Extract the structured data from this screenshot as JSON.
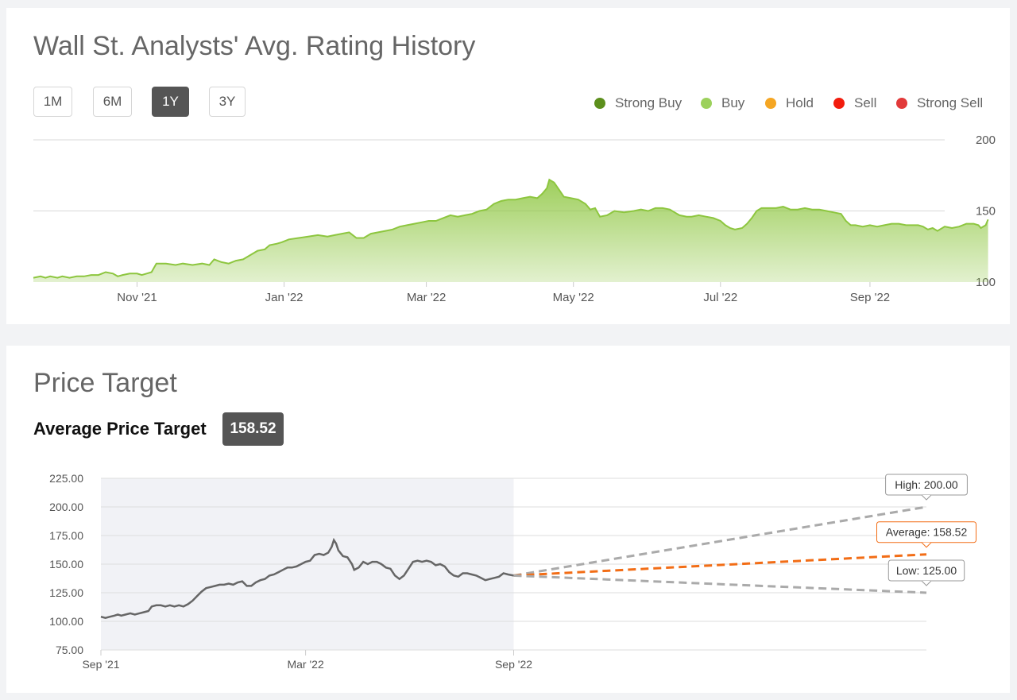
{
  "rating_card": {
    "title": "Wall St. Analysts' Avg. Rating History",
    "ranges": [
      "1M",
      "6M",
      "1Y",
      "3Y"
    ],
    "active_range": "1Y",
    "legend": [
      {
        "label": "Strong Buy",
        "color": "#5c8f1c"
      },
      {
        "label": "Buy",
        "color": "#9cd15c"
      },
      {
        "label": "Hold",
        "color": "#f5a623"
      },
      {
        "label": "Sell",
        "color": "#f21c0d"
      },
      {
        "label": "Strong Sell",
        "color": "#e23a3a"
      }
    ]
  },
  "target_card": {
    "title": "Price Target",
    "average_label": "Average Price Target",
    "average_value": "158.52"
  },
  "chart_data": [
    {
      "type": "area",
      "title": "Wall St. Analysts' Avg. Rating History",
      "series_color": "#8dc63f",
      "y_ticks": [
        "200",
        "150",
        "100"
      ],
      "ylim": [
        100,
        200
      ],
      "grid": true,
      "x_tick_labels": [
        "Nov '21",
        "Jan '22",
        "Mar '22",
        "May '22",
        "Jul '22",
        "Sep '22"
      ],
      "x_tick_days": [
        43,
        104,
        163,
        224,
        285,
        347
      ],
      "x_range_days": [
        0,
        378
      ],
      "points": [
        [
          0,
          103
        ],
        [
          3,
          104
        ],
        [
          5,
          103
        ],
        [
          7,
          104
        ],
        [
          10,
          103
        ],
        [
          12,
          104
        ],
        [
          15,
          103
        ],
        [
          18,
          104
        ],
        [
          21,
          104
        ],
        [
          24,
          105
        ],
        [
          27,
          105
        ],
        [
          30,
          107
        ],
        [
          33,
          106
        ],
        [
          35,
          104
        ],
        [
          37,
          105
        ],
        [
          40,
          106
        ],
        [
          43,
          106
        ],
        [
          45,
          105
        ],
        [
          47,
          106
        ],
        [
          49,
          107
        ],
        [
          51,
          113
        ],
        [
          55,
          113
        ],
        [
          59,
          112
        ],
        [
          62,
          113
        ],
        [
          66,
          112
        ],
        [
          70,
          113
        ],
        [
          73,
          112
        ],
        [
          75,
          116
        ],
        [
          78,
          114
        ],
        [
          81,
          113
        ],
        [
          84,
          115
        ],
        [
          87,
          116
        ],
        [
          90,
          119
        ],
        [
          93,
          122
        ],
        [
          96,
          123
        ],
        [
          98,
          126
        ],
        [
          101,
          127
        ],
        [
          103,
          128
        ],
        [
          106,
          130
        ],
        [
          110,
          131
        ],
        [
          114,
          132
        ],
        [
          118,
          133
        ],
        [
          122,
          132
        ],
        [
          125,
          133
        ],
        [
          128,
          134
        ],
        [
          131,
          135
        ],
        [
          134,
          131
        ],
        [
          137,
          131
        ],
        [
          140,
          134
        ],
        [
          143,
          135
        ],
        [
          146,
          136
        ],
        [
          149,
          137
        ],
        [
          152,
          139
        ],
        [
          155,
          140
        ],
        [
          158,
          141
        ],
        [
          161,
          142
        ],
        [
          164,
          143
        ],
        [
          167,
          143
        ],
        [
          170,
          145
        ],
        [
          173,
          147
        ],
        [
          176,
          146
        ],
        [
          179,
          147
        ],
        [
          182,
          148
        ],
        [
          185,
          150
        ],
        [
          188,
          151
        ],
        [
          191,
          155
        ],
        [
          194,
          157
        ],
        [
          197,
          158
        ],
        [
          200,
          158
        ],
        [
          203,
          159
        ],
        [
          206,
          160
        ],
        [
          209,
          159
        ],
        [
          211,
          162
        ],
        [
          213,
          166
        ],
        [
          214,
          172
        ],
        [
          216,
          170
        ],
        [
          218,
          165
        ],
        [
          220,
          160
        ],
        [
          223,
          159
        ],
        [
          226,
          158
        ],
        [
          229,
          155
        ],
        [
          231,
          151
        ],
        [
          233,
          152
        ],
        [
          235,
          146
        ],
        [
          238,
          147
        ],
        [
          241,
          150
        ],
        [
          245,
          149
        ],
        [
          249,
          150
        ],
        [
          252,
          151
        ],
        [
          255,
          150
        ],
        [
          258,
          152
        ],
        [
          261,
          152
        ],
        [
          264,
          151
        ],
        [
          266,
          149
        ],
        [
          268,
          147
        ],
        [
          271,
          146
        ],
        [
          273,
          146
        ],
        [
          276,
          147
        ],
        [
          279,
          146
        ],
        [
          282,
          145
        ],
        [
          285,
          143
        ],
        [
          287,
          140
        ],
        [
          289,
          138
        ],
        [
          291,
          137
        ],
        [
          294,
          138
        ],
        [
          296,
          141
        ],
        [
          298,
          145
        ],
        [
          300,
          150
        ],
        [
          302,
          152
        ],
        [
          305,
          152
        ],
        [
          308,
          152
        ],
        [
          311,
          153
        ],
        [
          314,
          151
        ],
        [
          317,
          151
        ],
        [
          320,
          152
        ],
        [
          323,
          151
        ],
        [
          326,
          151
        ],
        [
          329,
          150
        ],
        [
          332,
          149
        ],
        [
          335,
          148
        ],
        [
          337,
          143
        ],
        [
          339,
          140
        ],
        [
          341,
          140
        ],
        [
          344,
          139
        ],
        [
          347,
          140
        ],
        [
          350,
          139
        ],
        [
          353,
          140
        ],
        [
          356,
          141
        ],
        [
          359,
          141
        ],
        [
          362,
          140
        ],
        [
          365,
          140
        ],
        [
          367,
          140
        ],
        [
          369,
          139
        ],
        [
          371,
          137
        ],
        [
          373,
          138
        ],
        [
          375,
          136
        ],
        [
          378,
          139
        ],
        [
          381,
          138
        ],
        [
          384,
          139
        ],
        [
          387,
          141
        ],
        [
          390,
          141
        ],
        [
          392,
          140
        ],
        [
          393,
          138
        ],
        [
          395,
          140
        ],
        [
          396,
          144
        ]
      ]
    },
    {
      "type": "line",
      "title": "Price Target",
      "y_ticks": [
        "225.00",
        "200.00",
        "175.00",
        "150.00",
        "125.00",
        "100.00",
        "75.00"
      ],
      "ylim": [
        75,
        225
      ],
      "grid": true,
      "x_tick_labels": [
        "Sep '21",
        "Mar '22",
        "Sep '22"
      ],
      "x_tick_days": [
        0,
        181,
        365
      ],
      "x_range_days": [
        0,
        730
      ],
      "shaded_region_days": [
        0,
        365
      ],
      "price_color": "#666666",
      "price_points": [
        [
          0,
          104
        ],
        [
          4,
          103
        ],
        [
          8,
          104
        ],
        [
          12,
          105
        ],
        [
          15,
          106
        ],
        [
          18,
          105
        ],
        [
          22,
          106
        ],
        [
          26,
          107
        ],
        [
          30,
          106
        ],
        [
          34,
          107
        ],
        [
          38,
          108
        ],
        [
          42,
          109
        ],
        [
          45,
          113
        ],
        [
          49,
          114
        ],
        [
          53,
          114
        ],
        [
          57,
          113
        ],
        [
          61,
          114
        ],
        [
          65,
          113
        ],
        [
          69,
          114
        ],
        [
          73,
          113
        ],
        [
          77,
          115
        ],
        [
          81,
          118
        ],
        [
          85,
          122
        ],
        [
          89,
          126
        ],
        [
          93,
          129
        ],
        [
          97,
          130
        ],
        [
          101,
          131
        ],
        [
          105,
          132
        ],
        [
          109,
          132
        ],
        [
          113,
          133
        ],
        [
          117,
          132
        ],
        [
          121,
          134
        ],
        [
          125,
          135
        ],
        [
          129,
          131
        ],
        [
          133,
          131
        ],
        [
          137,
          134
        ],
        [
          141,
          136
        ],
        [
          145,
          137
        ],
        [
          149,
          140
        ],
        [
          153,
          141
        ],
        [
          157,
          143
        ],
        [
          161,
          145
        ],
        [
          165,
          147
        ],
        [
          169,
          147
        ],
        [
          173,
          148
        ],
        [
          177,
          150
        ],
        [
          181,
          152
        ],
        [
          185,
          153
        ],
        [
          189,
          158
        ],
        [
          193,
          159
        ],
        [
          197,
          158
        ],
        [
          201,
          160
        ],
        [
          204,
          165
        ],
        [
          206,
          171
        ],
        [
          208,
          168
        ],
        [
          210,
          162
        ],
        [
          214,
          157
        ],
        [
          218,
          156
        ],
        [
          222,
          150
        ],
        [
          224,
          145
        ],
        [
          228,
          147
        ],
        [
          232,
          152
        ],
        [
          236,
          150
        ],
        [
          240,
          152
        ],
        [
          244,
          152
        ],
        [
          248,
          150
        ],
        [
          252,
          147
        ],
        [
          256,
          146
        ],
        [
          260,
          140
        ],
        [
          264,
          137
        ],
        [
          268,
          140
        ],
        [
          272,
          146
        ],
        [
          276,
          152
        ],
        [
          280,
          153
        ],
        [
          284,
          152
        ],
        [
          288,
          153
        ],
        [
          292,
          152
        ],
        [
          296,
          149
        ],
        [
          300,
          150
        ],
        [
          304,
          148
        ],
        [
          308,
          143
        ],
        [
          312,
          140
        ],
        [
          316,
          139
        ],
        [
          320,
          142
        ],
        [
          324,
          142
        ],
        [
          328,
          141
        ],
        [
          332,
          140
        ],
        [
          336,
          138
        ],
        [
          340,
          136
        ],
        [
          344,
          137
        ],
        [
          348,
          138
        ],
        [
          352,
          139
        ],
        [
          356,
          142
        ],
        [
          360,
          141
        ],
        [
          365,
          140
        ]
      ],
      "forecast": [
        {
          "label": "High: 200.00",
          "value": 200.0,
          "color": "#aaaaaa",
          "start_value": 140
        },
        {
          "label": "Average: 158.52",
          "value": 158.52,
          "color": "#f26d16",
          "start_value": 140
        },
        {
          "label": "Low: 125.00",
          "value": 125.0,
          "color": "#aaaaaa",
          "start_value": 140
        }
      ],
      "forecast_end_day": 730
    }
  ]
}
